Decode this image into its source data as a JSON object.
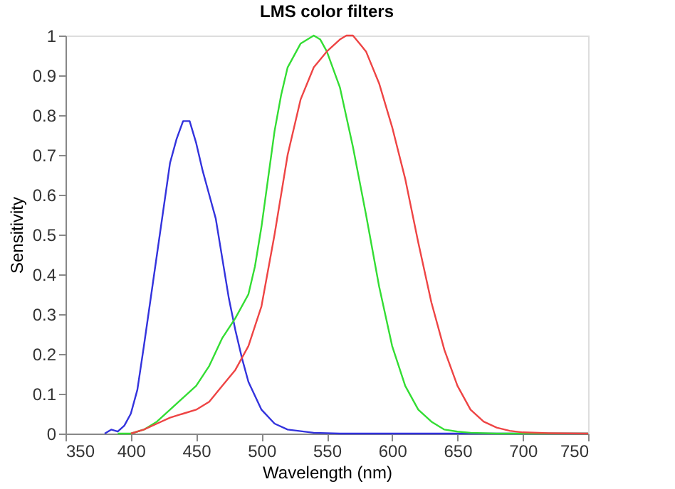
{
  "chart_data": {
    "type": "line",
    "title": "LMS color filters",
    "xlabel": "Wavelength (nm)",
    "ylabel": "Sensitivity",
    "xlim": [
      350,
      750
    ],
    "xticks": [
      350,
      400,
      450,
      500,
      550,
      600,
      650,
      700,
      750
    ],
    "ylim": [
      0,
      1
    ],
    "yticks": [
      0,
      0.1,
      0.2,
      0.3,
      0.4,
      0.5,
      0.6,
      0.7,
      0.8,
      0.9,
      1
    ],
    "grid": false,
    "legend": false,
    "line_style": "solid",
    "marker": "none",
    "series": [
      {
        "color": "#3333dd",
        "x": [
          380,
          385,
          390,
          395,
          400,
          405,
          410,
          420,
          430,
          435,
          440,
          445,
          450,
          455,
          460,
          465,
          470,
          475,
          480,
          485,
          490,
          500,
          510,
          520,
          540,
          560,
          750
        ],
        "values": [
          0,
          0.01,
          0.005,
          0.02,
          0.05,
          0.11,
          0.22,
          0.45,
          0.68,
          0.74,
          0.785,
          0.785,
          0.73,
          0.66,
          0.6,
          0.54,
          0.44,
          0.34,
          0.26,
          0.19,
          0.13,
          0.06,
          0.025,
          0.01,
          0.002,
          0,
          0
        ]
      },
      {
        "color": "#33dd33",
        "x": [
          390,
          400,
          410,
          420,
          430,
          440,
          450,
          460,
          470,
          480,
          490,
          495,
          500,
          505,
          510,
          515,
          520,
          530,
          540,
          545,
          550,
          560,
          570,
          580,
          590,
          600,
          610,
          620,
          630,
          640,
          650,
          660,
          680,
          750
        ],
        "values": [
          0,
          0,
          0.01,
          0.03,
          0.06,
          0.09,
          0.12,
          0.17,
          0.24,
          0.29,
          0.35,
          0.42,
          0.52,
          0.64,
          0.76,
          0.85,
          0.92,
          0.98,
          1.0,
          0.99,
          0.96,
          0.87,
          0.72,
          0.55,
          0.37,
          0.22,
          0.12,
          0.06,
          0.03,
          0.01,
          0.005,
          0.002,
          0,
          0
        ]
      },
      {
        "color": "#ee4444",
        "x": [
          400,
          410,
          420,
          430,
          440,
          450,
          460,
          470,
          480,
          490,
          500,
          510,
          520,
          530,
          540,
          550,
          560,
          565,
          570,
          580,
          590,
          600,
          610,
          620,
          630,
          640,
          650,
          660,
          670,
          680,
          690,
          700,
          720,
          750
        ],
        "values": [
          0,
          0.01,
          0.025,
          0.04,
          0.05,
          0.06,
          0.08,
          0.12,
          0.16,
          0.22,
          0.32,
          0.5,
          0.7,
          0.84,
          0.92,
          0.96,
          0.99,
          1.0,
          1.0,
          0.96,
          0.88,
          0.77,
          0.64,
          0.48,
          0.33,
          0.21,
          0.12,
          0.06,
          0.03,
          0.015,
          0.007,
          0.003,
          0.001,
          0
        ]
      }
    ]
  }
}
